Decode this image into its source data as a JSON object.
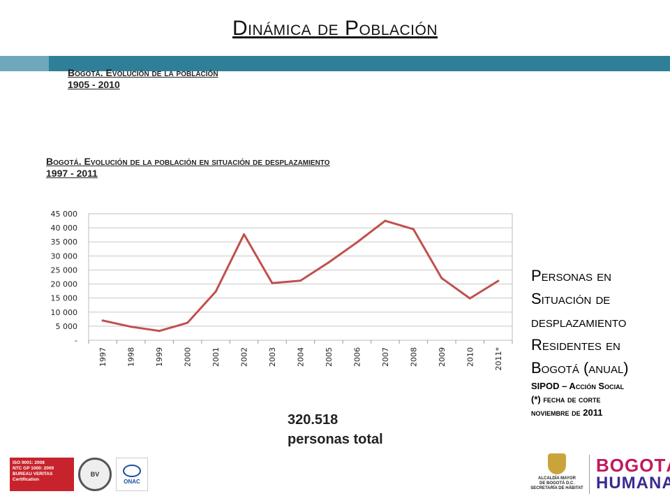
{
  "slide": {
    "title": "Dinámica de Población",
    "subtitle1_line1": "Bogotá. Evolución de la población",
    "subtitle1_line2": "1905 - 2010",
    "subtitle2_line1": "Bogotá. Evolución de la población en situación de desplazamiento",
    "subtitle2_line2": "1997 - 2011",
    "side_line1": "Personas en",
    "side_line2": "Situación de",
    "side_line3": "desplazamiento",
    "side_line4": "Residentes en",
    "side_line5": "Bogotá (anual)",
    "source_line1": "SIPOD – Acción Social",
    "source_line2": "(*) fecha de corte",
    "source_line3": "noviembre de 2011",
    "total_value": "320.518",
    "total_label": "personas total",
    "colors": {
      "band": "#2f7f98",
      "line": "#c0504d"
    }
  },
  "logos": {
    "iso_text_1": "ISO 9001: 2008",
    "iso_text_2": "NTC GP 1000: 2009",
    "iso_text_3": "BUREAU VERITAS",
    "iso_text_4": "Certification",
    "onac": "ONAC",
    "alcaldia_1": "ALCALDÍA MAYOR",
    "alcaldia_2": "DE BOGOTÁ D.C.",
    "alcaldia_3": "SECRETARÍA DE HÁBITAT",
    "bogota_1": "BOGOTÁ",
    "bogota_2": "HUMANA"
  },
  "chart_data": {
    "type": "line",
    "categories": [
      "1997",
      "1998",
      "1999",
      "2000",
      "2001",
      "2002",
      "2003",
      "2004",
      "2005",
      "2006",
      "2007",
      "2008",
      "2009",
      "2010",
      "2011*"
    ],
    "series": [
      {
        "values": [
          7000,
          4800,
          3300,
          6200,
          17300,
          37700,
          20300,
          21200,
          27700,
          34800,
          42500,
          39500,
          22100,
          14900,
          21100
        ]
      }
    ],
    "ylim": [
      0,
      45000
    ],
    "yticks": [
      0,
      5000,
      10000,
      15000,
      20000,
      25000,
      30000,
      35000,
      40000,
      45000
    ],
    "ytick_labels": [
      "-",
      "5 000",
      "10 000",
      "15 000",
      "20 000",
      "25 000",
      "30 000",
      "35 000",
      "40 000",
      "45 000"
    ],
    "grid": true,
    "xlabel": "",
    "ylabel": ""
  }
}
